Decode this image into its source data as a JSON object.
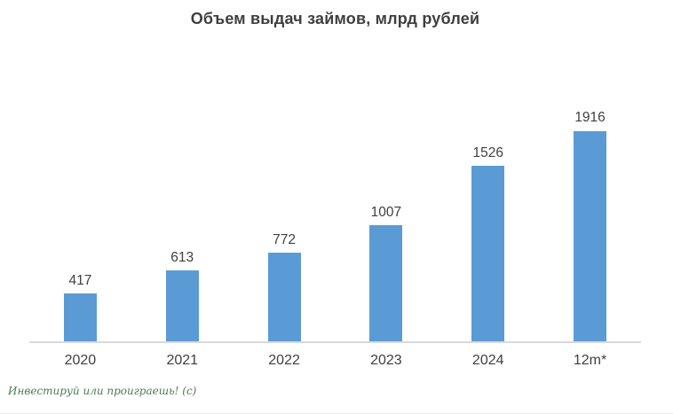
{
  "page": {
    "watermark": "Инвестируй или проиграешь! (с)"
  },
  "colors": {
    "bar": "#5b9bd5",
    "title": "#3f3f3f",
    "labels": "#404040",
    "axis_line": "#d9d9d9",
    "watermark": "#4e7d50"
  },
  "chart_data": {
    "type": "bar",
    "title": "Объем выдач займов, млрд рублей",
    "categories": [
      "2020",
      "2021",
      "2022",
      "2023",
      "2024",
      "12m*"
    ],
    "values": [
      417,
      613,
      772,
      1007,
      1526,
      1916
    ],
    "xlabel": "",
    "ylabel": "",
    "ylim": [
      0,
      2000
    ],
    "grid": false,
    "legend": false,
    "data_labels": true,
    "bar_color": "#5b9bd5"
  }
}
